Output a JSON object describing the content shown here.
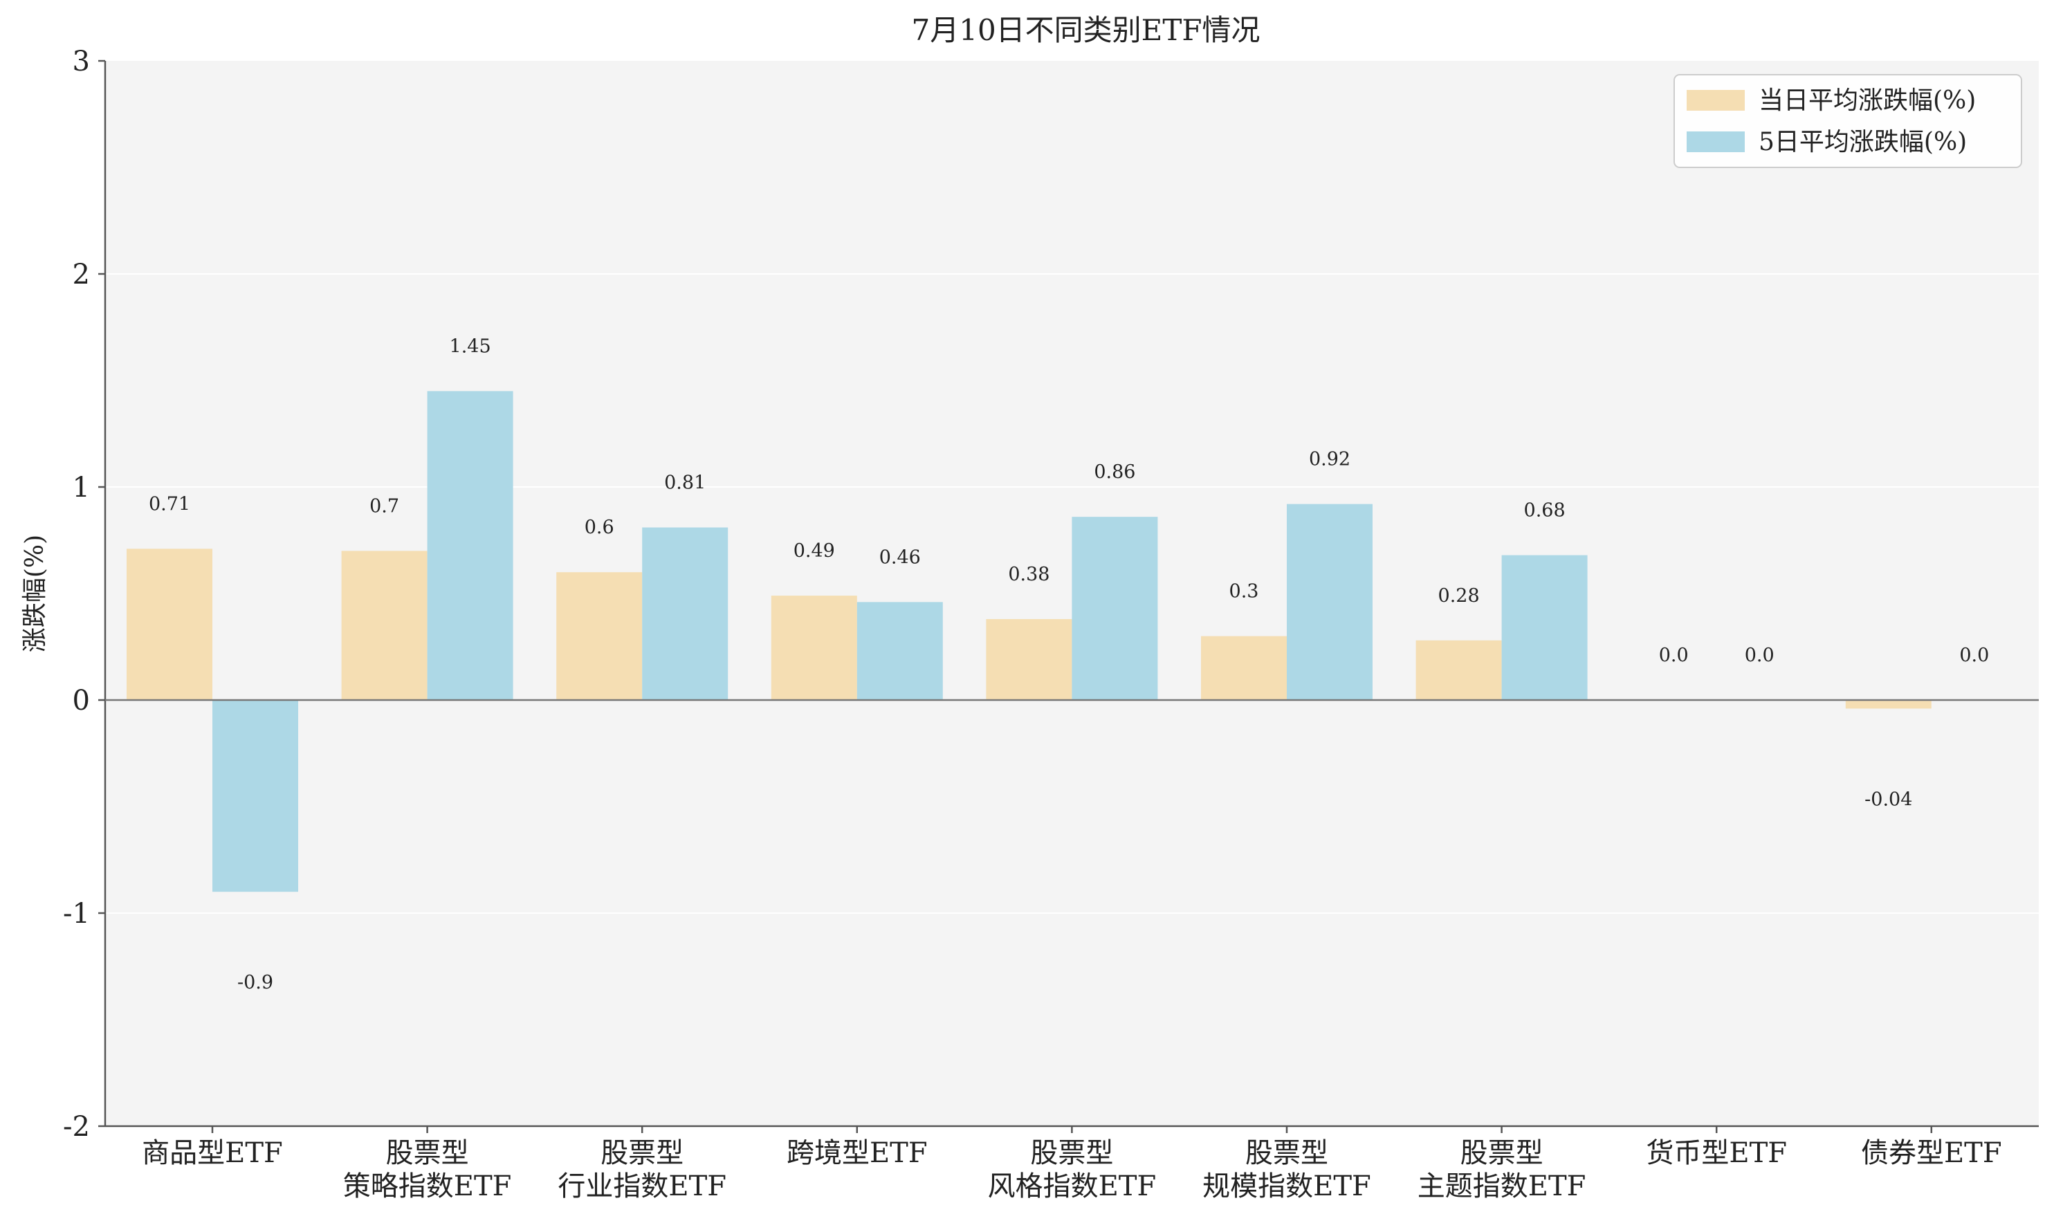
{
  "chart_data": {
    "type": "bar",
    "title": "7月10日不同类别ETF情况",
    "ylabel": "涨跌幅(%)",
    "xlabel": "",
    "ylim": [
      -2,
      3
    ],
    "yticks": [
      -2,
      -1,
      0,
      1,
      2,
      3
    ],
    "grid": true,
    "legend_position": "top-right",
    "categories": [
      [
        "商品型ETF"
      ],
      [
        "股票型",
        "策略指数ETF"
      ],
      [
        "股票型",
        "行业指数ETF"
      ],
      [
        "跨境型ETF"
      ],
      [
        "股票型",
        "风格指数ETF"
      ],
      [
        "股票型",
        "规模指数ETF"
      ],
      [
        "股票型",
        "主题指数ETF"
      ],
      [
        "货币型ETF"
      ],
      [
        "债券型ETF"
      ]
    ],
    "series": [
      {
        "name": "当日平均涨跌幅(%)",
        "color": "#f5deb3",
        "values": [
          0.71,
          0.7,
          0.6,
          0.49,
          0.38,
          0.3,
          0.28,
          0.0,
          -0.04
        ],
        "labels": [
          "0.71",
          "0.7",
          "0.6",
          "0.49",
          "0.38",
          "0.3",
          "0.28",
          "0.0",
          "-0.04"
        ]
      },
      {
        "name": "5日平均涨跌幅(%)",
        "color": "#add8e6",
        "values": [
          -0.9,
          1.45,
          0.81,
          0.46,
          0.86,
          0.92,
          0.68,
          0.0,
          0.0
        ],
        "labels": [
          "-0.9",
          "1.45",
          "0.81",
          "0.46",
          "0.86",
          "0.92",
          "0.68",
          "0.0",
          "0.0"
        ]
      }
    ],
    "colors": {
      "plot_background": "#f4f4f4",
      "axis": "#555555",
      "zero_line": "#777777",
      "grid": "#ffffff",
      "text": "#222222"
    }
  }
}
